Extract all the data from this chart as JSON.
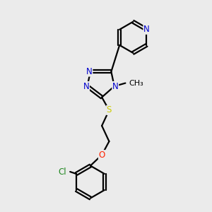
{
  "bg_color": "#ebebeb",
  "bond_color": "#000000",
  "line_width": 1.6,
  "atom_colors": {
    "N": "#0000cc",
    "S": "#cccc00",
    "O": "#ff2200",
    "Cl": "#228822",
    "C": "#000000"
  },
  "font_size": 8.5,
  "fig_size": [
    3.0,
    3.0
  ],
  "dpi": 100
}
